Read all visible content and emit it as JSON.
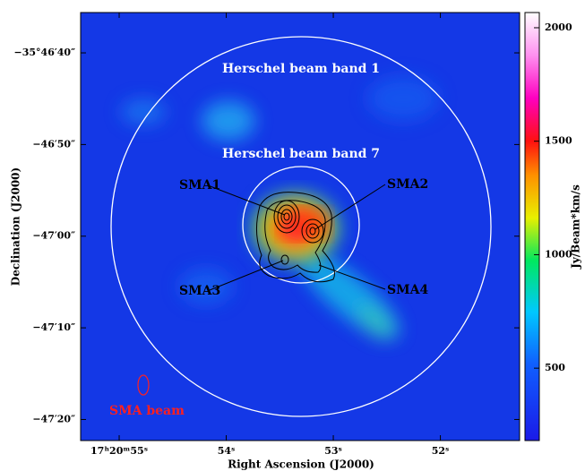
{
  "chart_data": {
    "type": "image",
    "xlabel": "Right Ascension (J2000)",
    "ylabel": "Declination (J2000)",
    "xlim": [
      55.36,
      51.26
    ],
    "xticks": [
      {
        "value": 55,
        "label": "17ʰ20ᵐ55ˢ"
      },
      {
        "value": 54,
        "label": "54ˢ"
      },
      {
        "value": 53,
        "label": "53ˢ"
      },
      {
        "value": 52,
        "label": "52ˢ"
      }
    ],
    "ylim": [
      -2842.3,
      -2795.6
    ],
    "yticks": [
      {
        "value": -2800,
        "label": "−35°46′40″"
      },
      {
        "value": -2810,
        "label": "−46′50″"
      },
      {
        "value": -2820,
        "label": "−47′00″"
      },
      {
        "value": -2830,
        "label": "−47′10″"
      },
      {
        "value": -2840,
        "label": "−47′20″"
      }
    ],
    "colorbar": {
      "label": "Jy/Beam*km/s",
      "lim": [
        181,
        2067
      ],
      "ticks": [
        500,
        1000,
        1500,
        2000
      ]
    },
    "annotations": [
      "Herschel beam band 1",
      "Herschel beam band 7",
      "SMA1",
      "SMA2",
      "SMA3",
      "SMA4",
      "SMA beam"
    ]
  }
}
